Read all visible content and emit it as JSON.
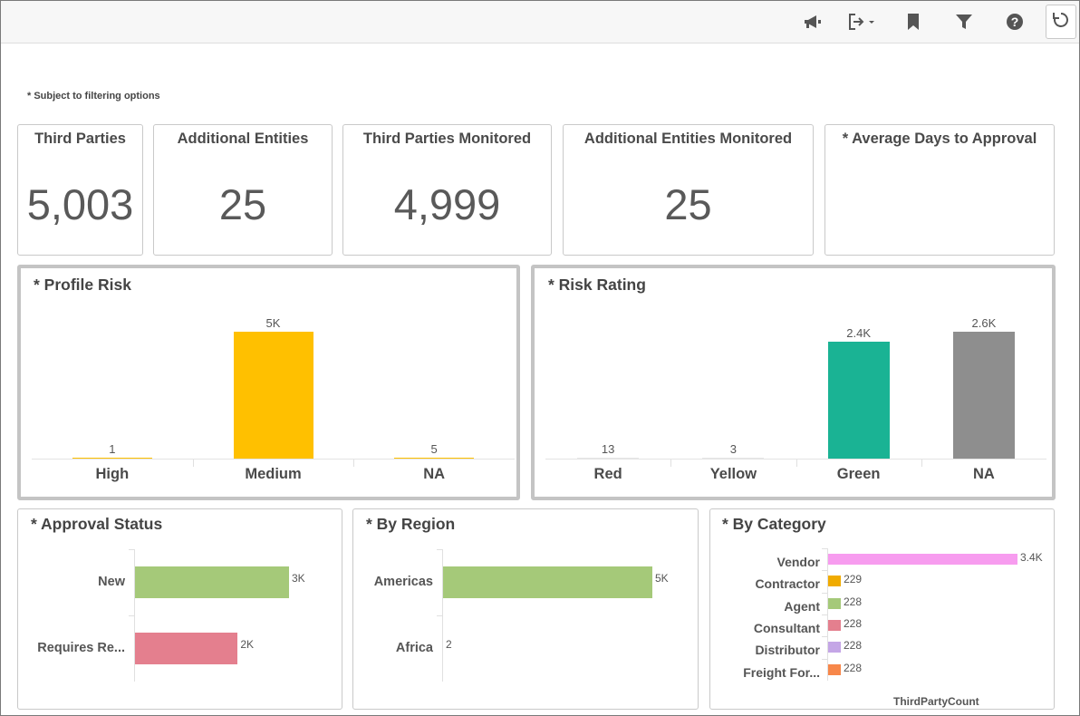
{
  "toolbar": {
    "icons": [
      "megaphone-icon",
      "export-icon",
      "bookmark-icon",
      "filter-icon",
      "help-icon",
      "refresh-icon"
    ]
  },
  "note": "* Subject to filtering options",
  "kpis": [
    {
      "title": "Third Parties",
      "value": "5,003"
    },
    {
      "title": "Additional Entities",
      "value": "25"
    },
    {
      "title": "Third Parties Monitored",
      "value": "4,999"
    },
    {
      "title": "Additional Entities Monitored",
      "value": "25"
    },
    {
      "title": "* Average Days to Approval",
      "value": ""
    }
  ],
  "chart_data": [
    {
      "type": "bar",
      "title": "* Profile Risk",
      "categories": [
        "High",
        "Medium",
        "NA"
      ],
      "values": [
        1,
        5000,
        5
      ],
      "data_labels": [
        "1",
        "5K",
        "5"
      ],
      "colors": [
        "#ffc000",
        "#ffc000",
        "#ffc000"
      ],
      "ylim": [
        0,
        5000
      ]
    },
    {
      "type": "bar",
      "title": "* Risk Rating",
      "categories": [
        "Red",
        "Yellow",
        "Green",
        "NA"
      ],
      "values": [
        13,
        3,
        2400,
        2600
      ],
      "data_labels": [
        "13",
        "3",
        "2.4K",
        "2.6K"
      ],
      "colors": [
        "#e6e6e6",
        "#e6e6e6",
        "#1ab394",
        "#8e8e8e"
      ],
      "ylim": [
        0,
        2600
      ]
    },
    {
      "type": "bar",
      "orientation": "horizontal",
      "title": "* Approval Status",
      "categories": [
        "New",
        "Requires Re..."
      ],
      "values": [
        3000,
        2000
      ],
      "data_labels": [
        "3K",
        "2K"
      ],
      "colors": [
        "#a5c979",
        "#e47f8e"
      ],
      "xlim": [
        0,
        3000
      ]
    },
    {
      "type": "bar",
      "orientation": "horizontal",
      "title": "* By Region",
      "categories": [
        "Americas",
        "Africa"
      ],
      "values": [
        5000,
        2
      ],
      "data_labels": [
        "5K",
        "2"
      ],
      "colors": [
        "#a5c979",
        "#a5c979"
      ],
      "xlim": [
        0,
        5000
      ]
    },
    {
      "type": "bar",
      "orientation": "horizontal",
      "title": "* By Category",
      "categories": [
        "Vendor",
        "Contractor",
        "Agent",
        "Consultant",
        "Distributor",
        "Freight For..."
      ],
      "values": [
        3400,
        229,
        228,
        228,
        228,
        228
      ],
      "data_labels": [
        "3.4K",
        "229",
        "228",
        "228",
        "228",
        "228"
      ],
      "colors": [
        "#f79cef",
        "#f0ab00",
        "#a5c979",
        "#e47f8e",
        "#c4a6e6",
        "#f7874a"
      ],
      "xlabel": "ThirdPartyCount",
      "xlim": [
        0,
        3400
      ]
    }
  ]
}
